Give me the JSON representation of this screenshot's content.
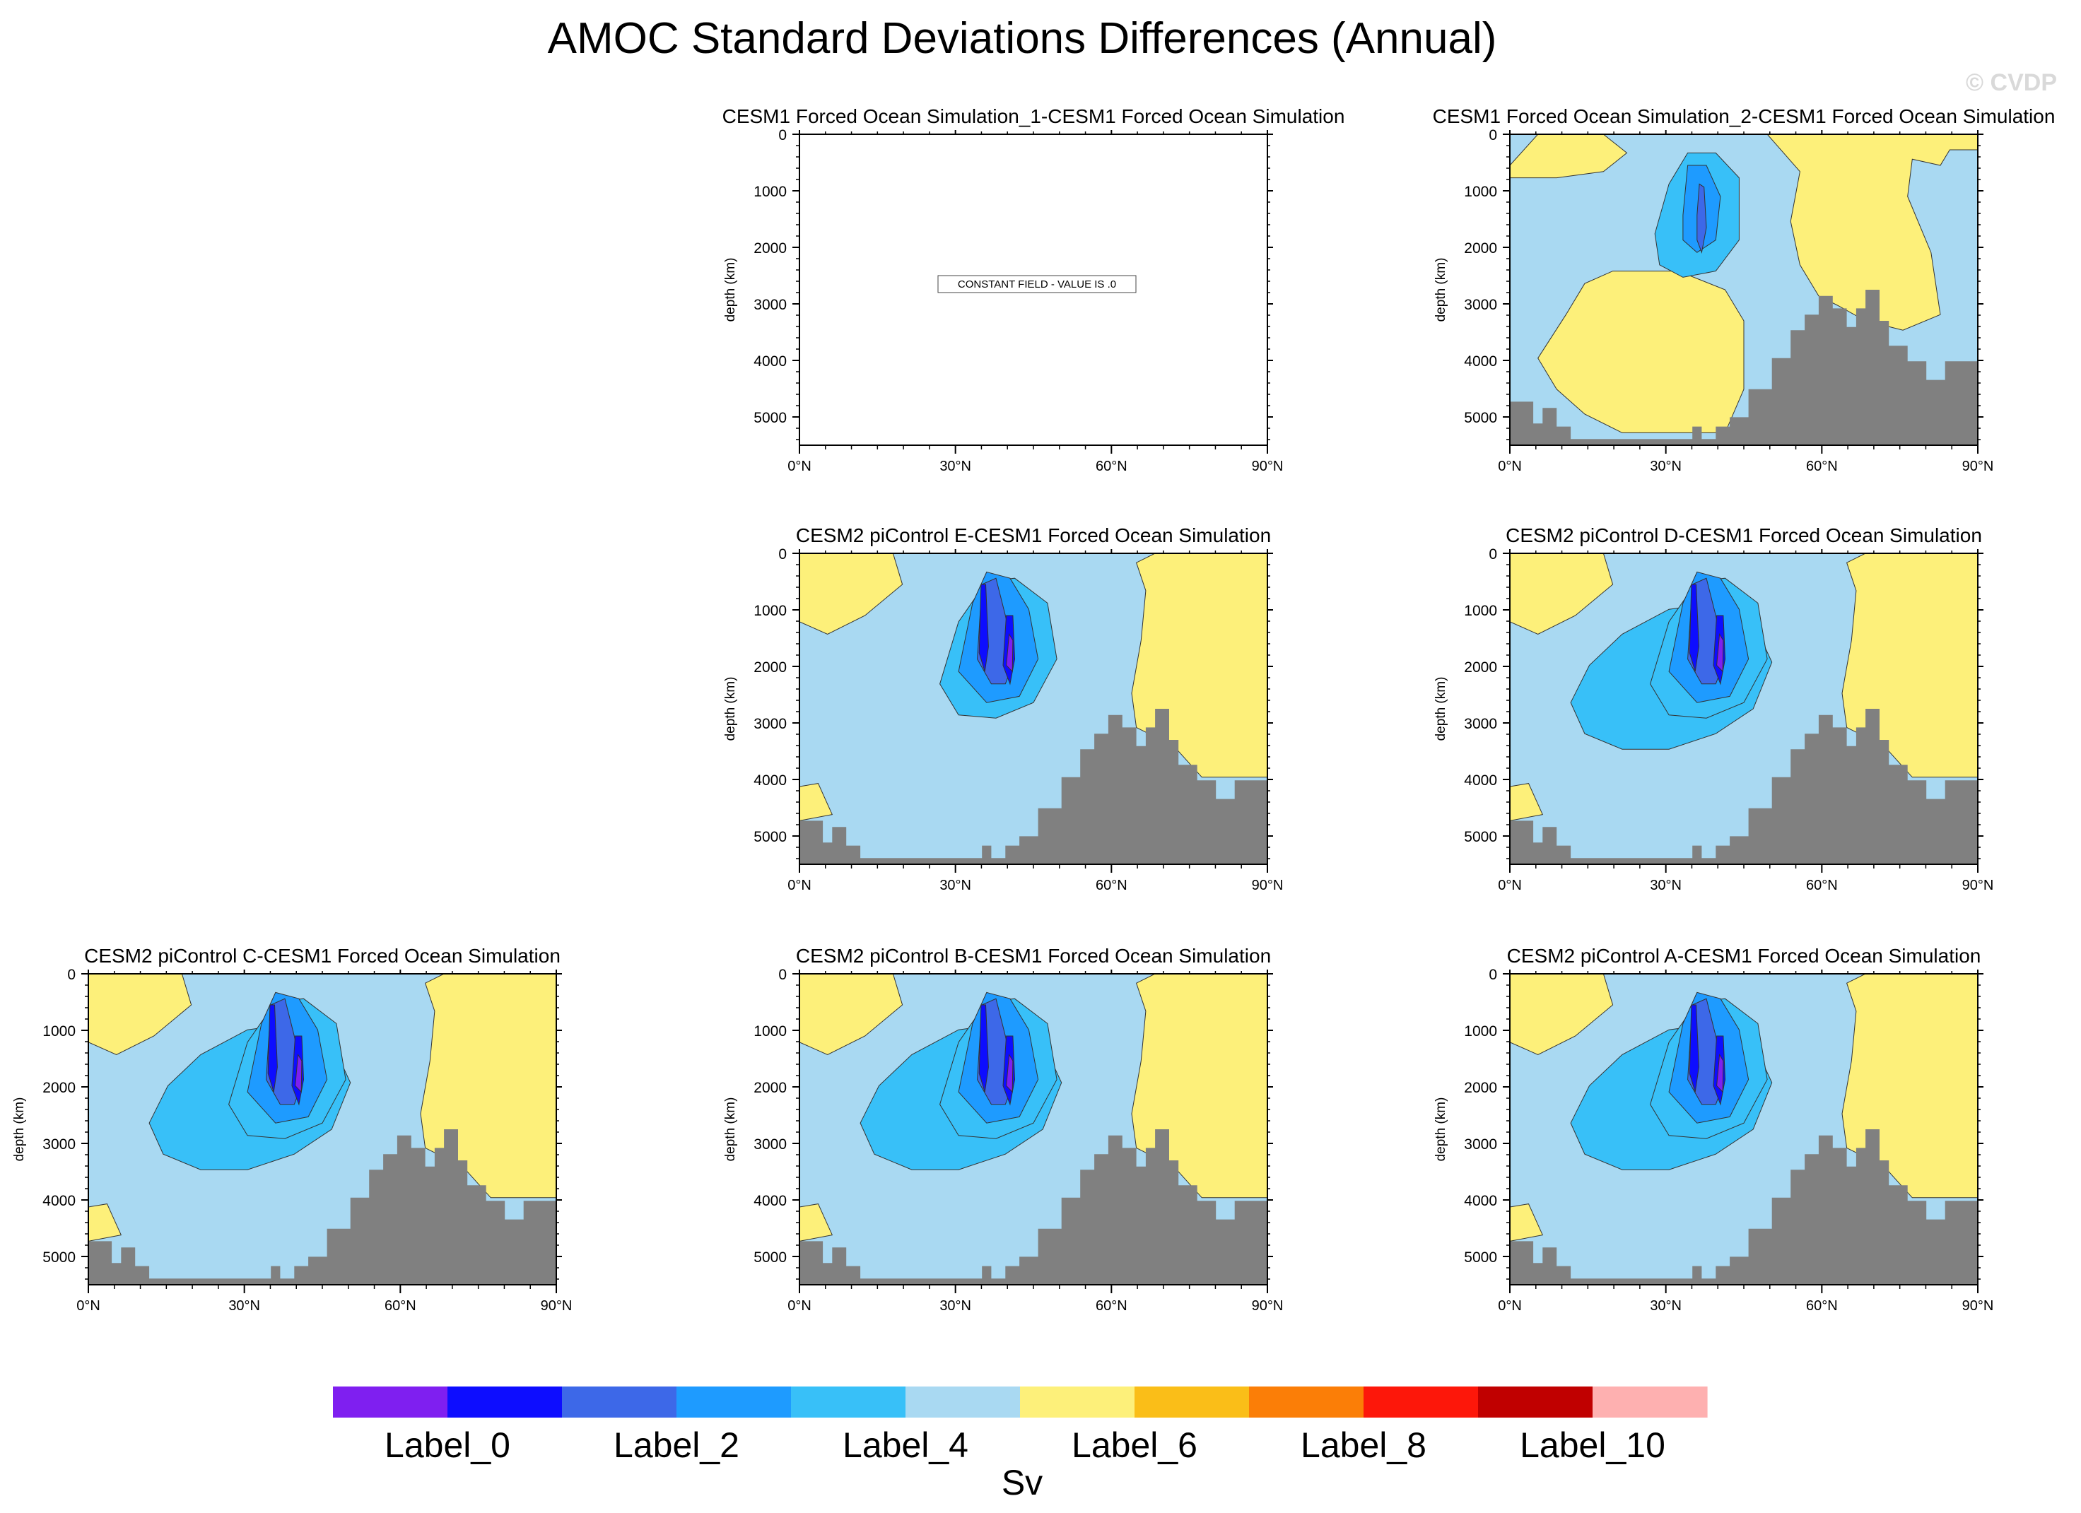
{
  "chart_data": {
    "type": "contour",
    "title": "AMOC Standard Deviations Differences (Annual)",
    "watermark": "© CVDP",
    "colorbar": {
      "colors": [
        "#7f1ff0",
        "#0d0dff",
        "#3d68e8",
        "#1e9bff",
        "#38c0f8",
        "#a9d9f2",
        "#fdf07a",
        "#fabe18",
        "#fb7e07",
        "#fd170a",
        "#c00000",
        "#feb0b0"
      ],
      "labels": [
        "Label_0",
        "Label_2",
        "Label_4",
        "Label_6",
        "Label_8",
        "Label_10"
      ],
      "unit": "Sv"
    },
    "panels": [
      {
        "id": "p1",
        "title": "CESM1 Forced Ocean Simulation_1-CESM1 Forced Ocean Simulation",
        "constant_note": "CONSTANT FIELD - VALUE IS .0",
        "ylabel": "depth (km)",
        "yticks": [
          "0",
          "1000",
          "2000",
          "3000",
          "4000",
          "5000"
        ],
        "xticks": [
          "0°N",
          "30°N",
          "60°N",
          "90°N"
        ],
        "x_range": [
          0,
          90
        ],
        "y_range": [
          0,
          5500
        ]
      },
      {
        "id": "p2",
        "title": "CESM1 Forced Ocean Simulation_2-CESM1 Forced Ocean Simulation",
        "ylabel": "depth (km)",
        "yticks": [
          "0",
          "1000",
          "2000",
          "3000",
          "4000",
          "5000"
        ],
        "xticks": [
          "0°N",
          "30°N",
          "60°N",
          "90°N"
        ],
        "x_range": [
          0,
          90
        ],
        "y_range": [
          0,
          5500
        ]
      },
      {
        "id": "p3",
        "title": "CESM2 piControl E-CESM1 Forced Ocean Simulation",
        "ylabel": "depth (km)",
        "yticks": [
          "0",
          "1000",
          "2000",
          "3000",
          "4000",
          "5000"
        ],
        "xticks": [
          "0°N",
          "30°N",
          "60°N",
          "90°N"
        ],
        "x_range": [
          0,
          90
        ],
        "y_range": [
          0,
          5500
        ]
      },
      {
        "id": "p4",
        "title": "CESM2 piControl D-CESM1 Forced Ocean Simulation",
        "ylabel": "depth (km)",
        "yticks": [
          "0",
          "1000",
          "2000",
          "3000",
          "4000",
          "5000"
        ],
        "xticks": [
          "0°N",
          "30°N",
          "60°N",
          "90°N"
        ],
        "x_range": [
          0,
          90
        ],
        "y_range": [
          0,
          5500
        ]
      },
      {
        "id": "p5",
        "title": "CESM2 piControl C-CESM1 Forced Ocean Simulation",
        "ylabel": "depth (km)",
        "yticks": [
          "0",
          "1000",
          "2000",
          "3000",
          "4000",
          "5000"
        ],
        "xticks": [
          "0°N",
          "30°N",
          "60°N",
          "90°N"
        ],
        "x_range": [
          0,
          90
        ],
        "y_range": [
          0,
          5500
        ]
      },
      {
        "id": "p6",
        "title": "CESM2 piControl B-CESM1 Forced Ocean Simulation",
        "ylabel": "depth (km)",
        "yticks": [
          "0",
          "1000",
          "2000",
          "3000",
          "4000",
          "5000"
        ],
        "xticks": [
          "0°N",
          "30°N",
          "60°N",
          "90°N"
        ],
        "x_range": [
          0,
          90
        ],
        "y_range": [
          0,
          5500
        ]
      },
      {
        "id": "p7",
        "title": "CESM2 piControl A-CESM1 Forced Ocean Simulation",
        "ylabel": "depth (km)",
        "yticks": [
          "0",
          "1000",
          "2000",
          "3000",
          "4000",
          "5000"
        ],
        "xticks": [
          "0°N",
          "30°N",
          "60°N",
          "90°N"
        ],
        "x_range": [
          0,
          90
        ],
        "y_range": [
          0,
          5500
        ]
      }
    ]
  }
}
